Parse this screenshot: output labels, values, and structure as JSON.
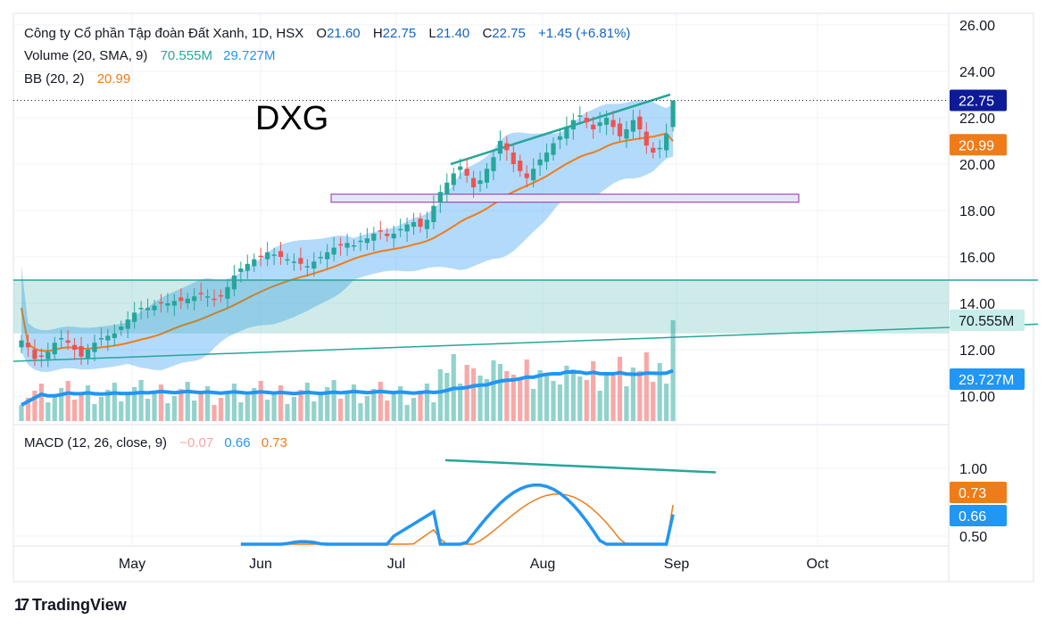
{
  "legend": {
    "symbol": "Công ty Cổ phần Tập đoàn Đất Xanh, 1D, HSX",
    "o_label": "O",
    "o": "21.60",
    "h_label": "H",
    "h": "22.75",
    "l_label": "L",
    "l": "21.40",
    "c_label": "C",
    "c": "22.75",
    "chg": "+1.45 (+6.81%)",
    "volume_label": "Volume (20, SMA, 9)",
    "volume_value": "70.555M",
    "volume_sma": "29.727M",
    "bb_label": "BB (20, 2)",
    "bb_value": "20.99",
    "macd_label": "MACD (12, 26, close, 9)",
    "macd_hist": "−0.07",
    "macd_line": "0.66",
    "macd_signal": "0.73"
  },
  "ticker_annotation": "DXG",
  "branding": "TradingView",
  "colors": {
    "up": "#26a69a",
    "down": "#ef5350",
    "bb_fill": "#2196f3",
    "bb_mid": "#ef7c19",
    "volume_ma": "#2196f3",
    "macd": "#2196f3",
    "signal": "#ef7c19",
    "zone": "#26a69a",
    "rect": "#9c27b0"
  },
  "chart_data": [
    {
      "type": "candlestick",
      "title": "Công ty Cổ phần Tập đoàn Đất Xanh, 1D, HSX",
      "x_ticks": [
        "May",
        "Jun",
        "Jul",
        "Aug",
        "Sep",
        "Oct"
      ],
      "y_ticks": [
        "26.00",
        "24.00",
        "22.00",
        "20.00",
        "18.00",
        "16.00",
        "14.00",
        "12.00",
        "10.00"
      ],
      "ylim": [
        9.0,
        26.5
      ],
      "start_date": "2023-04-12",
      "closes": [
        12.4,
        12.1,
        11.6,
        11.7,
        11.9,
        12.3,
        12.5,
        12.3,
        12.0,
        11.7,
        12.0,
        12.3,
        12.5,
        12.6,
        12.7,
        13.0,
        13.3,
        13.6,
        13.8,
        13.8,
        13.9,
        14.0,
        14.0,
        14.1,
        14.1,
        14.2,
        14.3,
        14.4,
        14.3,
        14.2,
        14.3,
        14.7,
        15.2,
        15.5,
        15.7,
        15.9,
        16.0,
        16.2,
        16.1,
        16.0,
        15.9,
        15.8,
        15.7,
        15.6,
        15.8,
        16.0,
        16.2,
        16.4,
        16.5,
        16.6,
        16.5,
        16.7,
        16.8,
        17.0,
        17.1,
        16.9,
        17.0,
        17.2,
        17.4,
        17.5,
        17.3,
        17.6,
        18.2,
        18.8,
        19.2,
        19.6,
        19.9,
        19.5,
        19.0,
        19.3,
        19.8,
        20.3,
        21.0,
        20.6,
        20.0,
        19.7,
        19.4,
        19.8,
        20.2,
        20.5,
        20.9,
        21.2,
        21.6,
        21.9,
        22.1,
        21.8,
        21.5,
        21.8,
        22.0,
        21.6,
        21.2,
        21.5,
        21.9,
        21.5,
        20.8,
        20.5,
        20.7,
        21.3,
        22.75
      ],
      "highs_lows_note": "approximate daily ranges",
      "bb_upper_start": 15.6,
      "bb_mid_start": 13.8,
      "bb_lower_start": 11.9,
      "last_close": 22.75,
      "bb_basis": 20.99,
      "horizontal_zone": [
        12.7,
        15.0
      ],
      "rectangle_zone": [
        18.35,
        18.55
      ],
      "trendlines": "rising support and resistance lines"
    },
    {
      "type": "bar",
      "title": "Volume (20, SMA, 9)",
      "last_value": "70.555M",
      "sma": "29.727M"
    },
    {
      "type": "line",
      "title": "MACD (12, 26, close, 9)",
      "y_ticks": [
        "1.00",
        "0.50"
      ],
      "macd": 0.66,
      "signal": 0.73,
      "histogram": -0.07
    }
  ]
}
